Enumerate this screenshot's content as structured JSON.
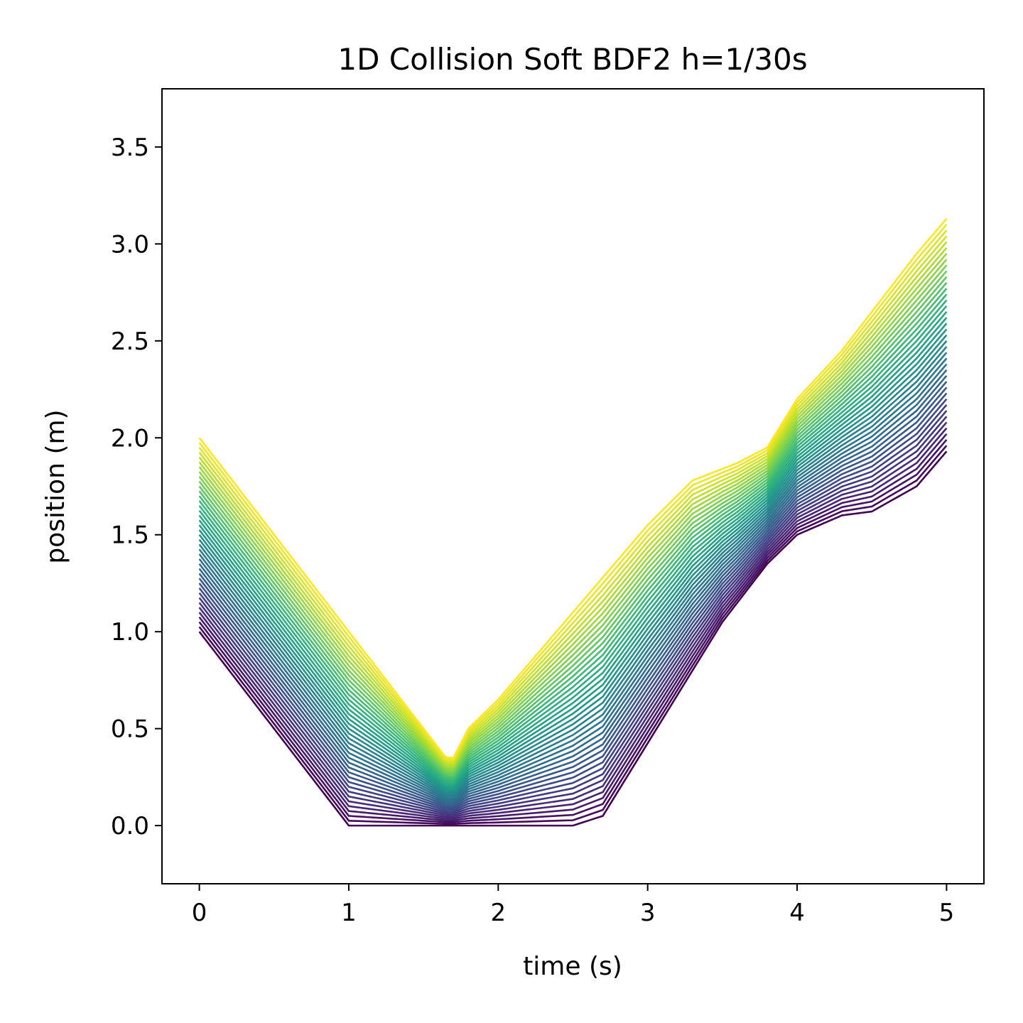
{
  "chart_data": {
    "type": "line",
    "title": "1D Collision Soft BDF2 h=1/30s",
    "xlabel": "time (s)",
    "ylabel": "position (m)",
    "xlim": [
      -0.25,
      5.25
    ],
    "ylim": [
      -0.3,
      3.8
    ],
    "x_ticks": [
      0,
      1,
      2,
      3,
      4,
      5
    ],
    "x_tick_labels": [
      "0",
      "1",
      "2",
      "3",
      "4",
      "5"
    ],
    "y_ticks": [
      0.0,
      0.5,
      1.0,
      1.5,
      2.0,
      2.5,
      3.0,
      3.5
    ],
    "y_tick_labels": [
      "0.0",
      "0.5",
      "1.0",
      "1.5",
      "2.0",
      "2.5",
      "3.0",
      "3.5"
    ],
    "grid": false,
    "legend": "none",
    "colormap": "viridis",
    "colormap_stops": [
      "#440154",
      "#482878",
      "#3e4989",
      "#31688e",
      "#26828e",
      "#1f9e89",
      "#35b779",
      "#6ece58",
      "#b5de2b",
      "#fde725"
    ],
    "series_count": 41,
    "series_step": 0.025,
    "series_min": {
      "x": [
        0,
        1.0,
        1.5,
        2.0,
        2.5,
        2.7,
        2.9,
        3.1,
        3.5,
        3.8,
        4.0,
        4.3,
        4.5,
        4.8,
        5.0
      ],
      "y": [
        1.0,
        0.0,
        0.0,
        0.0,
        0.0,
        0.05,
        0.3,
        0.55,
        1.05,
        1.35,
        1.5,
        1.6,
        1.62,
        1.75,
        1.93
      ]
    },
    "series_max": {
      "x": [
        0,
        0.5,
        1.0,
        1.5,
        1.65,
        1.7,
        1.8,
        2.0,
        2.5,
        3.0,
        3.3,
        3.6,
        3.8,
        4.0,
        4.3,
        4.5,
        4.8,
        5.0
      ],
      "y": [
        2.0,
        1.5,
        1.0,
        0.5,
        0.35,
        0.35,
        0.5,
        0.65,
        1.1,
        1.55,
        1.78,
        1.87,
        1.95,
        2.2,
        2.45,
        2.65,
        2.95,
        3.13
      ]
    }
  }
}
